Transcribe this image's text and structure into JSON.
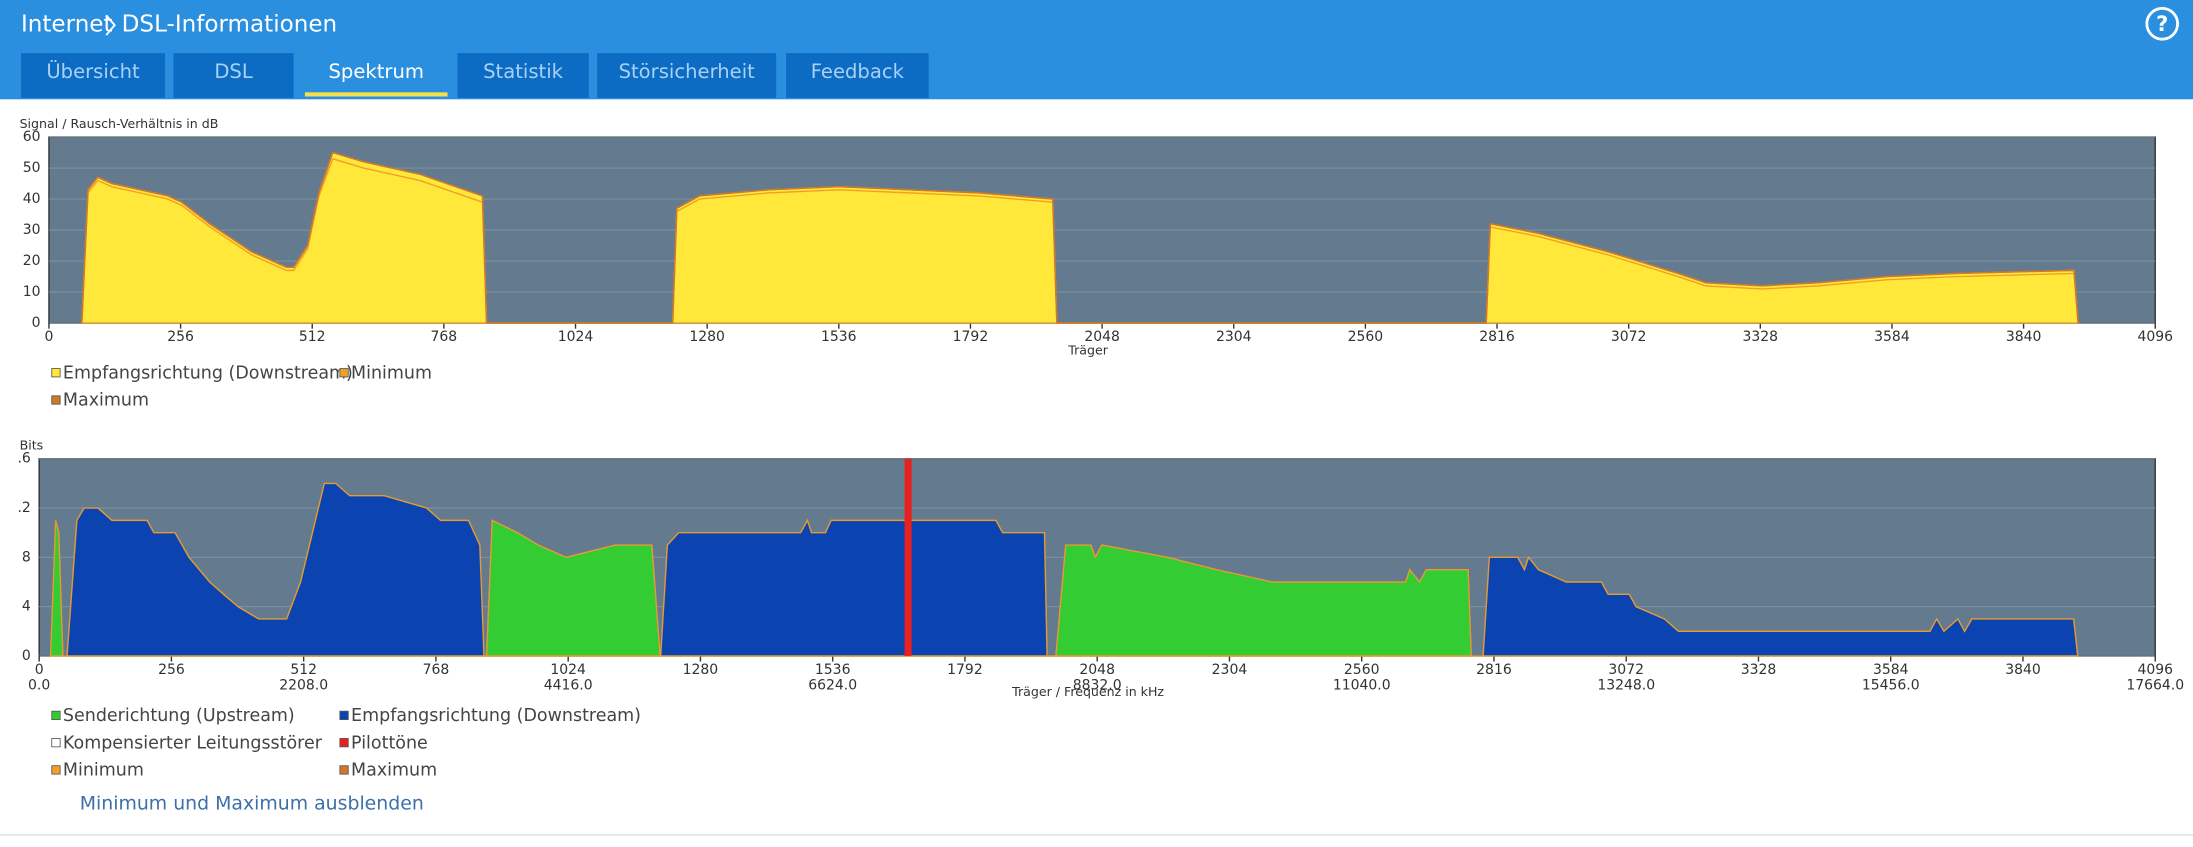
{
  "header": {
    "breadcrumb": [
      "Internet",
      "DSL-Informationen"
    ],
    "help": "?",
    "tabs": [
      "Übersicht",
      "DSL",
      "Spektrum",
      "Statistik",
      "Störsicherheit",
      "Feedback"
    ],
    "active_tab": 2
  },
  "link": "Minimum und Maximum ausblenden",
  "chart_data": [
    {
      "type": "area",
      "title": "Signal / Rausch-Verhältnis in dB",
      "xlabel": "Träger",
      "xlim": [
        0,
        4096
      ],
      "xticks": [
        0,
        256,
        512,
        768,
        1024,
        1280,
        1536,
        1792,
        2048,
        2304,
        2560,
        2816,
        3072,
        3328,
        3584,
        3840,
        4096
      ],
      "ylim": [
        0,
        60
      ],
      "yticks": [
        0,
        10,
        20,
        30,
        40,
        50,
        60
      ],
      "grid": true,
      "x": [
        64,
        76,
        95,
        122,
        177,
        231,
        258,
        313,
        394,
        462,
        476,
        503,
        525,
        552,
        612,
        721,
        843,
        851,
        1213,
        1221,
        1265,
        1400,
        1536,
        1672,
        1808,
        1952,
        1960,
        2795,
        2803,
        2895,
        3032,
        3168,
        3222,
        3331,
        3440,
        3576,
        3712,
        3938,
        3946
      ],
      "series": [
        {
          "name": "Empfangsrichtung (Downstream)",
          "color": "#ffe83a",
          "kind": "area",
          "values": [
            0,
            43,
            47,
            45,
            43,
            41,
            39,
            32,
            23,
            18,
            18,
            25,
            42,
            55,
            52,
            48,
            41,
            0,
            0,
            37,
            41,
            43,
            44,
            43,
            42,
            40,
            0,
            0,
            32,
            29,
            23,
            16,
            13,
            12,
            13,
            15,
            16,
            17,
            0
          ]
        },
        {
          "name": "Minimum",
          "color": "#f0a028",
          "kind": "line",
          "values": [
            0,
            42,
            46,
            44,
            42,
            40,
            38,
            31,
            22,
            17,
            17,
            24,
            41,
            53,
            50,
            46,
            39,
            0,
            0,
            36,
            40,
            42,
            43,
            42,
            41,
            39,
            0,
            0,
            31,
            28,
            22,
            15,
            12,
            11,
            12,
            14,
            15,
            16,
            0
          ]
        },
        {
          "name": "Maximum",
          "color": "#d0782a",
          "kind": "line",
          "values": [
            0,
            43,
            47,
            45,
            43,
            41,
            39,
            32,
            23,
            18,
            18,
            25,
            42,
            55,
            52,
            48,
            41,
            0,
            0,
            37,
            41,
            43,
            44,
            43,
            42,
            40,
            0,
            0,
            32,
            29,
            23,
            16,
            13,
            12,
            13,
            15,
            16,
            17,
            0
          ]
        }
      ]
    },
    {
      "type": "area",
      "title": "Bits",
      "xlabel": "Träger / Frequenz in kHz",
      "xlim": [
        0,
        4096
      ],
      "xticks": [
        0,
        256,
        512,
        768,
        1024,
        1280,
        1536,
        1792,
        2048,
        2304,
        2560,
        2816,
        3072,
        3328,
        3584,
        3840,
        4096
      ],
      "x2ticks": [
        {
          "value": 0,
          "label": "0.0"
        },
        {
          "value": 512,
          "label": "2208.0"
        },
        {
          "value": 1024,
          "label": "4416.0"
        },
        {
          "value": 1536,
          "label": "6624.0"
        },
        {
          "value": 2048,
          "label": "8832.0"
        },
        {
          "value": 2560,
          "label": "11040.0"
        },
        {
          "value": 3072,
          "label": "13248.0"
        },
        {
          "value": 3584,
          "label": "15456.0"
        },
        {
          "value": 4096,
          "label": "17664.0"
        }
      ],
      "ylim": [
        0,
        16
      ],
      "yticks": [
        0,
        4,
        8,
        {
          "value": 12,
          "label": ".2"
        },
        {
          "value": 16,
          "label": ".6"
        }
      ],
      "grid": true,
      "series": [
        {
          "name": "Senderichtung (Upstream)",
          "color": "#33cc33",
          "kind": "area",
          "x": [
            22,
            32,
            38,
            46,
            866,
            877,
            926,
            966,
            1020,
            1115,
            1186,
            1202,
            1968,
            1987,
            2036,
            2044,
            2057,
            2184,
            2279,
            2387,
            2645,
            2653,
            2672,
            2685,
            2766,
            2772
          ],
          "values": [
            0,
            11,
            10,
            0,
            0,
            11,
            10,
            9,
            8,
            9,
            9,
            0,
            0,
            9,
            9,
            8,
            9,
            8,
            7,
            6,
            6,
            7,
            6,
            7,
            7,
            0
          ]
        },
        {
          "name": "Empfangsrichtung (Downstream)",
          "color": "#0b44b0",
          "kind": "area",
          "x": [
            54,
            73,
            87,
            114,
            141,
            209,
            222,
            263,
            290,
            330,
            357,
            385,
            425,
            479,
            506,
            552,
            574,
            601,
            668,
            750,
            777,
            831,
            853,
            861,
            1203,
            1216,
            1238,
            1474,
            1487,
            1495,
            1522,
            1533,
            1595,
            1676,
            1852,
            1865,
            1946,
            1951,
            2795,
            2807,
            2862,
            2875,
            2883,
            2902,
            2956,
            3024,
            3037,
            3078,
            3091,
            3146,
            3173,
            3660,
            3673,
            3687,
            3714,
            3727,
            3741,
            3768,
            3938,
            3946
          ],
          "values": [
            0,
            11,
            12,
            12,
            11,
            11,
            10,
            10,
            8,
            6,
            5,
            4,
            3,
            3,
            6,
            14,
            14,
            13,
            13,
            12,
            11,
            11,
            9,
            0,
            0,
            9,
            10,
            10,
            11,
            10,
            10,
            11,
            11,
            11,
            11,
            10,
            10,
            0,
            0,
            8,
            8,
            7,
            8,
            7,
            6,
            6,
            5,
            5,
            4,
            3,
            2,
            2,
            3,
            2,
            3,
            2,
            3,
            3,
            3,
            0
          ]
        },
        {
          "name": "Kompensierter Leitungsstörer",
          "color": "#ffffff",
          "kind": "bar",
          "x": [],
          "values": []
        },
        {
          "name": "Pilottöne",
          "color": "#e8201e",
          "kind": "bar",
          "x": [
            1682
          ],
          "values": [
            16
          ]
        },
        {
          "name": "Minimum",
          "color": "#f0a028",
          "kind": "line",
          "x": [],
          "values": []
        },
        {
          "name": "Maximum",
          "color": "#d0782a",
          "kind": "line",
          "x": [],
          "values": []
        }
      ]
    }
  ]
}
